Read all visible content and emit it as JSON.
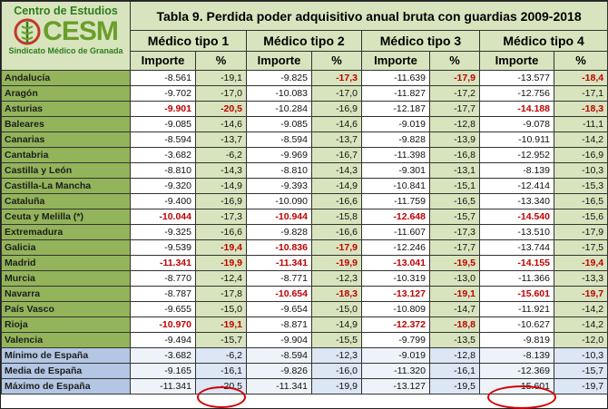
{
  "logo": {
    "top_text": "Centro de Estudios",
    "letters": "CESM",
    "bottom_text": "Sindicato Médico de Granada"
  },
  "title": "Tabla 9. Perdida poder adquisitivo anual bruta con guardias 2009-2018",
  "column_groups": [
    "Médico tipo  1",
    "Médico tipo  2",
    "Médico tipo  3",
    "Médico tipo  4"
  ],
  "subheaders": {
    "importe": "Importe",
    "pct": "%"
  },
  "rows": [
    {
      "region": "Andalucía",
      "values": [
        "-8.561",
        "-19,1",
        "-9.825",
        "-17,3",
        "-11.639",
        "-17,9",
        "-13.577",
        "-18,4"
      ],
      "red": [
        false,
        false,
        false,
        true,
        false,
        true,
        false,
        true
      ]
    },
    {
      "region": "Aragón",
      "values": [
        "-9.702",
        "-17,0",
        "-10.083",
        "-17,0",
        "-11.827",
        "-17,2",
        "-12.756",
        "-17,1"
      ],
      "red": [
        false,
        false,
        false,
        false,
        false,
        false,
        false,
        false
      ]
    },
    {
      "region": "Asturias",
      "values": [
        "-9.901",
        "-20,5",
        "-10.284",
        "-16,9",
        "-12.187",
        "-17,7",
        "-14.188",
        "-18,3"
      ],
      "red": [
        true,
        true,
        false,
        false,
        false,
        false,
        true,
        true
      ]
    },
    {
      "region": "Baleares",
      "values": [
        "-9.085",
        "-14,6",
        "-9.085",
        "-14,6",
        "-9.019",
        "-12,8",
        "-9.078",
        "-11,1"
      ],
      "red": [
        false,
        false,
        false,
        false,
        false,
        false,
        false,
        false
      ]
    },
    {
      "region": "Canarias",
      "values": [
        "-8.594",
        "-13,7",
        "-8.594",
        "-13,7",
        "-9.828",
        "-13,9",
        "-10.911",
        "-14,2"
      ],
      "red": [
        false,
        false,
        false,
        false,
        false,
        false,
        false,
        false
      ]
    },
    {
      "region": "Cantabria",
      "values": [
        "-3.682",
        "-6,2",
        "-9.969",
        "-16,7",
        "-11.398",
        "-16,8",
        "-12.952",
        "-16,9"
      ],
      "red": [
        false,
        false,
        false,
        false,
        false,
        false,
        false,
        false
      ]
    },
    {
      "region": "Castilla y León",
      "values": [
        "-8.810",
        "-14,3",
        "-8.810",
        "-14,3",
        "-9.301",
        "-13,1",
        "-8.139",
        "-10,3"
      ],
      "red": [
        false,
        false,
        false,
        false,
        false,
        false,
        false,
        false
      ]
    },
    {
      "region": "Castilla-La Mancha",
      "values": [
        "-9.320",
        "-14,9",
        "-9.393",
        "-14,9",
        "-10.841",
        "-15,1",
        "-12.414",
        "-15,3"
      ],
      "red": [
        false,
        false,
        false,
        false,
        false,
        false,
        false,
        false
      ]
    },
    {
      "region": "Cataluña",
      "values": [
        "-9.400",
        "-16,9",
        "-10.090",
        "-16,6",
        "-11.759",
        "-16,5",
        "-13.340",
        "-16,5"
      ],
      "red": [
        false,
        false,
        false,
        false,
        false,
        false,
        false,
        false
      ]
    },
    {
      "region": "Ceuta y Melilla (*)",
      "values": [
        "-10.044",
        "-17,3",
        "-10.944",
        "-15,8",
        "-12.648",
        "-15,7",
        "-14.540",
        "-15,6"
      ],
      "red": [
        true,
        false,
        true,
        false,
        true,
        false,
        true,
        false
      ]
    },
    {
      "region": "Extremadura",
      "values": [
        "-9.325",
        "-16,6",
        "-9.828",
        "-16,6",
        "-11.607",
        "-17,3",
        "-13.510",
        "-17,9"
      ],
      "red": [
        false,
        false,
        false,
        false,
        false,
        false,
        false,
        false
      ]
    },
    {
      "region": "Galicia",
      "values": [
        "-9.539",
        "-19,4",
        "-10.836",
        "-17,9",
        "-12.246",
        "-17,7",
        "-13.744",
        "-17,5"
      ],
      "red": [
        false,
        true,
        true,
        true,
        false,
        false,
        false,
        false
      ]
    },
    {
      "region": "Madrid",
      "values": [
        "-11.341",
        "-19,9",
        "-11.341",
        "-19,9",
        "-13.041",
        "-19,5",
        "-14.155",
        "-19,4"
      ],
      "red": [
        true,
        true,
        true,
        true,
        true,
        true,
        true,
        true
      ]
    },
    {
      "region": "Murcia",
      "values": [
        "-8.770",
        "-12,4",
        "-8.771",
        "-12,3",
        "-10.319",
        "-13,0",
        "-11.366",
        "-13,3"
      ],
      "red": [
        false,
        false,
        false,
        false,
        false,
        false,
        false,
        false
      ]
    },
    {
      "region": "Navarra",
      "values": [
        "-8.787",
        "-17,8",
        "-10.654",
        "-18,3",
        "-13.127",
        "-19,1",
        "-15.601",
        "-19,7"
      ],
      "red": [
        false,
        false,
        true,
        true,
        true,
        true,
        true,
        true
      ]
    },
    {
      "region": "País Vasco",
      "values": [
        "-9.655",
        "-15,0",
        "-9.654",
        "-15,0",
        "-10.809",
        "-14,7",
        "-11.921",
        "-14,2"
      ],
      "red": [
        false,
        false,
        false,
        false,
        false,
        false,
        false,
        false
      ]
    },
    {
      "region": "Rioja",
      "values": [
        "-10.970",
        "-19,1",
        "-8.871",
        "-14,9",
        "-12.372",
        "-18,8",
        "-10.627",
        "-14,2"
      ],
      "red": [
        true,
        true,
        false,
        false,
        true,
        true,
        false,
        false
      ]
    },
    {
      "region": "Valencia",
      "values": [
        "-9.494",
        "-15,7",
        "-9.904",
        "-15,5",
        "-9.799",
        "-13,5",
        "-9.819",
        "-12,0"
      ],
      "red": [
        false,
        false,
        false,
        false,
        false,
        false,
        false,
        false
      ]
    }
  ],
  "summary_rows": [
    {
      "region": "Mínimo de España",
      "values": [
        "-3.682",
        "-6,2",
        "-8.594",
        "-12,3",
        "-9.019",
        "-12,8",
        "-8.139",
        "-10,3"
      ]
    },
    {
      "region": "Media de España",
      "values": [
        "-9.165",
        "-16,1",
        "-9.826",
        "-16,0",
        "-11.320",
        "-16,1",
        "-12.369",
        "-15,7"
      ]
    },
    {
      "region": "Máximo de España",
      "values": [
        "-11.341",
        "-20,5",
        "-11.341",
        "-19,9",
        "-13.127",
        "-19,5",
        "-15.601",
        "-19,7"
      ]
    }
  ],
  "colors": {
    "region_bg": "#93b45a",
    "header_bg": "#d8e4bd",
    "summary_bg": "#b3c6e3",
    "highlight_red": "#c00000",
    "circle_red": "#d00000"
  }
}
